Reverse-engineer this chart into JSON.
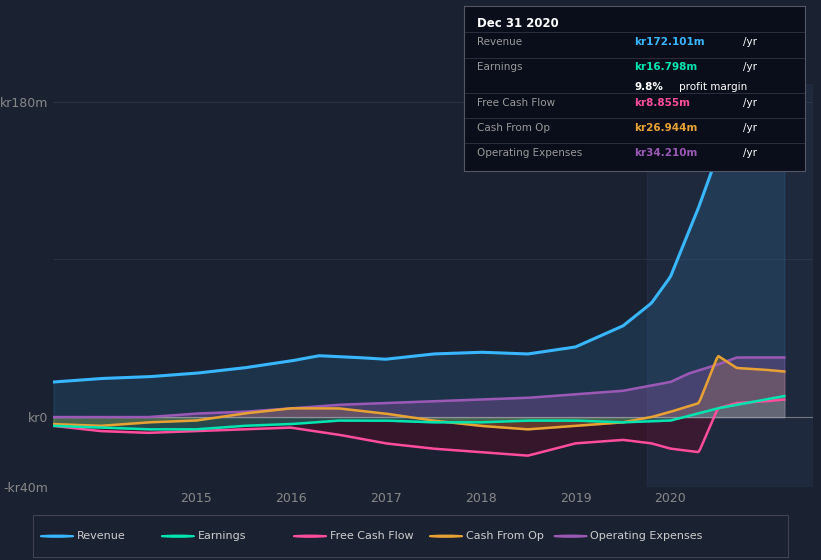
{
  "bg_color": "#1a2232",
  "plot_bg_color": "#1a2232",
  "highlight_bg": "#252f48",
  "y_label_min": "-kr40m",
  "y_label_0": "kr0",
  "y_label_180": "kr180m",
  "ylim": [
    -40,
    190
  ],
  "xlim": [
    2013.5,
    2021.5
  ],
  "x_ticks": [
    2015,
    2016,
    2017,
    2018,
    2019,
    2020
  ],
  "info_box": {
    "date": "Dec 31 2020",
    "revenue_label": "Revenue",
    "revenue_value": "kr172.101m",
    "earnings_label": "Earnings",
    "earnings_value": "kr16.798m",
    "profit_margin": "9.8%",
    "profit_margin_text": "profit margin",
    "fcf_label": "Free Cash Flow",
    "fcf_value": "kr8.855m",
    "cashop_label": "Cash From Op",
    "cashop_value": "kr26.944m",
    "opex_label": "Operating Expenses",
    "opex_value": "kr34.210m",
    "yr_label": "/yr"
  },
  "legend": [
    {
      "label": "Revenue",
      "color": "#38b6ff"
    },
    {
      "label": "Earnings",
      "color": "#00e5b0"
    },
    {
      "label": "Free Cash Flow",
      "color": "#ff4d9d"
    },
    {
      "label": "Cash From Op",
      "color": "#e8a234"
    },
    {
      "label": "Operating Expenses",
      "color": "#9b59b6"
    }
  ],
  "revenue_color": "#38b6ff",
  "earnings_color": "#00e5b0",
  "fcf_color": "#ff4d9d",
  "cashop_color": "#e8a234",
  "opex_color": "#9b59b6",
  "revenue_x": [
    2013.5,
    2014.0,
    2014.5,
    2015.0,
    2015.5,
    2016.0,
    2016.3,
    2016.7,
    2017.0,
    2017.5,
    2018.0,
    2018.5,
    2019.0,
    2019.5,
    2019.8,
    2020.0,
    2020.3,
    2020.5,
    2020.7,
    2021.0,
    2021.2
  ],
  "revenue_y": [
    20,
    22,
    23,
    25,
    28,
    32,
    35,
    34,
    33,
    36,
    37,
    36,
    40,
    52,
    65,
    80,
    120,
    150,
    170,
    175,
    178
  ],
  "earnings_x": [
    2013.5,
    2014.0,
    2014.5,
    2015.0,
    2015.5,
    2016.0,
    2016.5,
    2017.0,
    2017.5,
    2018.0,
    2018.5,
    2019.0,
    2019.5,
    2020.0,
    2020.5,
    2021.0,
    2021.2
  ],
  "earnings_y": [
    -5,
    -6,
    -7,
    -7,
    -5,
    -4,
    -2,
    -2,
    -3,
    -3,
    -2,
    -2,
    -3,
    -2,
    5,
    10,
    12
  ],
  "fcf_x": [
    2013.5,
    2014.0,
    2014.5,
    2015.0,
    2015.5,
    2016.0,
    2016.5,
    2017.0,
    2017.5,
    2018.0,
    2018.5,
    2019.0,
    2019.5,
    2019.8,
    2020.0,
    2020.3,
    2020.5,
    2020.7,
    2021.0,
    2021.2
  ],
  "fcf_y": [
    -5,
    -8,
    -9,
    -8,
    -7,
    -6,
    -10,
    -15,
    -18,
    -20,
    -22,
    -15,
    -13,
    -15,
    -18,
    -20,
    5,
    8,
    9,
    10
  ],
  "cashop_x": [
    2013.5,
    2014.0,
    2014.5,
    2015.0,
    2015.5,
    2016.0,
    2016.5,
    2017.0,
    2017.5,
    2018.0,
    2018.5,
    2019.0,
    2019.5,
    2019.8,
    2020.0,
    2020.3,
    2020.5,
    2020.7,
    2021.0,
    2021.2
  ],
  "cashop_y": [
    -4,
    -5,
    -3,
    -2,
    2,
    5,
    5,
    2,
    -2,
    -5,
    -7,
    -5,
    -3,
    0,
    3,
    8,
    35,
    28,
    27,
    26
  ],
  "opex_x": [
    2013.5,
    2014.0,
    2014.5,
    2015.0,
    2015.5,
    2016.0,
    2016.5,
    2017.0,
    2017.5,
    2018.0,
    2018.5,
    2019.0,
    2019.5,
    2020.0,
    2020.2,
    2020.5,
    2020.7,
    2021.0,
    2021.2
  ],
  "opex_y": [
    0,
    0,
    0,
    2,
    3,
    5,
    7,
    8,
    9,
    10,
    11,
    13,
    15,
    20,
    25,
    30,
    34,
    34,
    34
  ]
}
